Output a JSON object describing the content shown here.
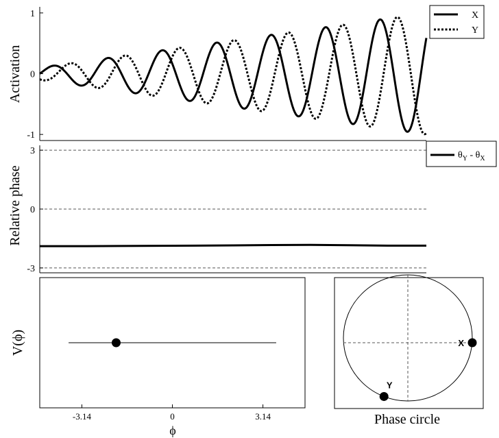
{
  "colors": {
    "ink": "#000000",
    "background": "#ffffff",
    "grid": "#555555"
  },
  "chart_data": [
    {
      "id": "activation",
      "type": "line",
      "ylabel": "Activation",
      "xlim": [
        0,
        100
      ],
      "ylim": [
        -1.1,
        1.1
      ],
      "yticks": [
        {
          "value": 1,
          "label": "1"
        },
        {
          "value": 0,
          "label": "0"
        },
        {
          "value": -1,
          "label": "-1"
        }
      ],
      "legend_position": "top-right",
      "series": [
        {
          "name": "X",
          "style": "solid",
          "amp_start": 0.1,
          "amp_end": 1.0,
          "cycles": 7.1,
          "phase": 0.0
        },
        {
          "name": "Y",
          "style": "dotted",
          "amp_start": 0.1,
          "amp_end": 1.0,
          "cycles": 7.1,
          "phase": -1.98
        }
      ]
    },
    {
      "id": "relative-phase",
      "type": "line",
      "ylabel": "Relative phase",
      "xlim": [
        0,
        100
      ],
      "ylim": [
        -3.4,
        3.4
      ],
      "yticks": [
        {
          "value": 3.14,
          "label": "3"
        },
        {
          "value": 0,
          "label": "0"
        },
        {
          "value": -3.14,
          "label": "-3"
        }
      ],
      "reference_lines": [
        3.14,
        0,
        -3.14
      ],
      "legend_position": "top-right",
      "series": [
        {
          "name_base1": "θ",
          "name_sub1": "Y",
          "name_mid": " - ",
          "name_base2": "θ",
          "name_sub2": "X",
          "style": "solid",
          "x": [
            0,
            10,
            20,
            30,
            40,
            50,
            60,
            70,
            80,
            90,
            100
          ],
          "values": [
            -1.98,
            -1.98,
            -1.97,
            -1.96,
            -1.95,
            -1.94,
            -1.92,
            -1.91,
            -1.93,
            -1.95,
            -1.95
          ]
        }
      ]
    },
    {
      "id": "potential",
      "type": "scatter",
      "ylabel": "V(ϕ)",
      "xlabel": "ϕ",
      "xlim": [
        -4.6,
        4.6
      ],
      "xticks": [
        {
          "value": -3.14,
          "label": "-3.14"
        },
        {
          "value": 0,
          "label": "0"
        },
        {
          "value": 3.14,
          "label": "3.14"
        }
      ],
      "line_range": [
        -3.6,
        3.6
      ],
      "marker": {
        "x": -1.95
      }
    },
    {
      "id": "phase-circle",
      "type": "scatter",
      "title": "Phase circle",
      "points": [
        {
          "label": "X",
          "angle": 0.0
        },
        {
          "label": "Y",
          "angle": -1.95
        }
      ]
    }
  ]
}
